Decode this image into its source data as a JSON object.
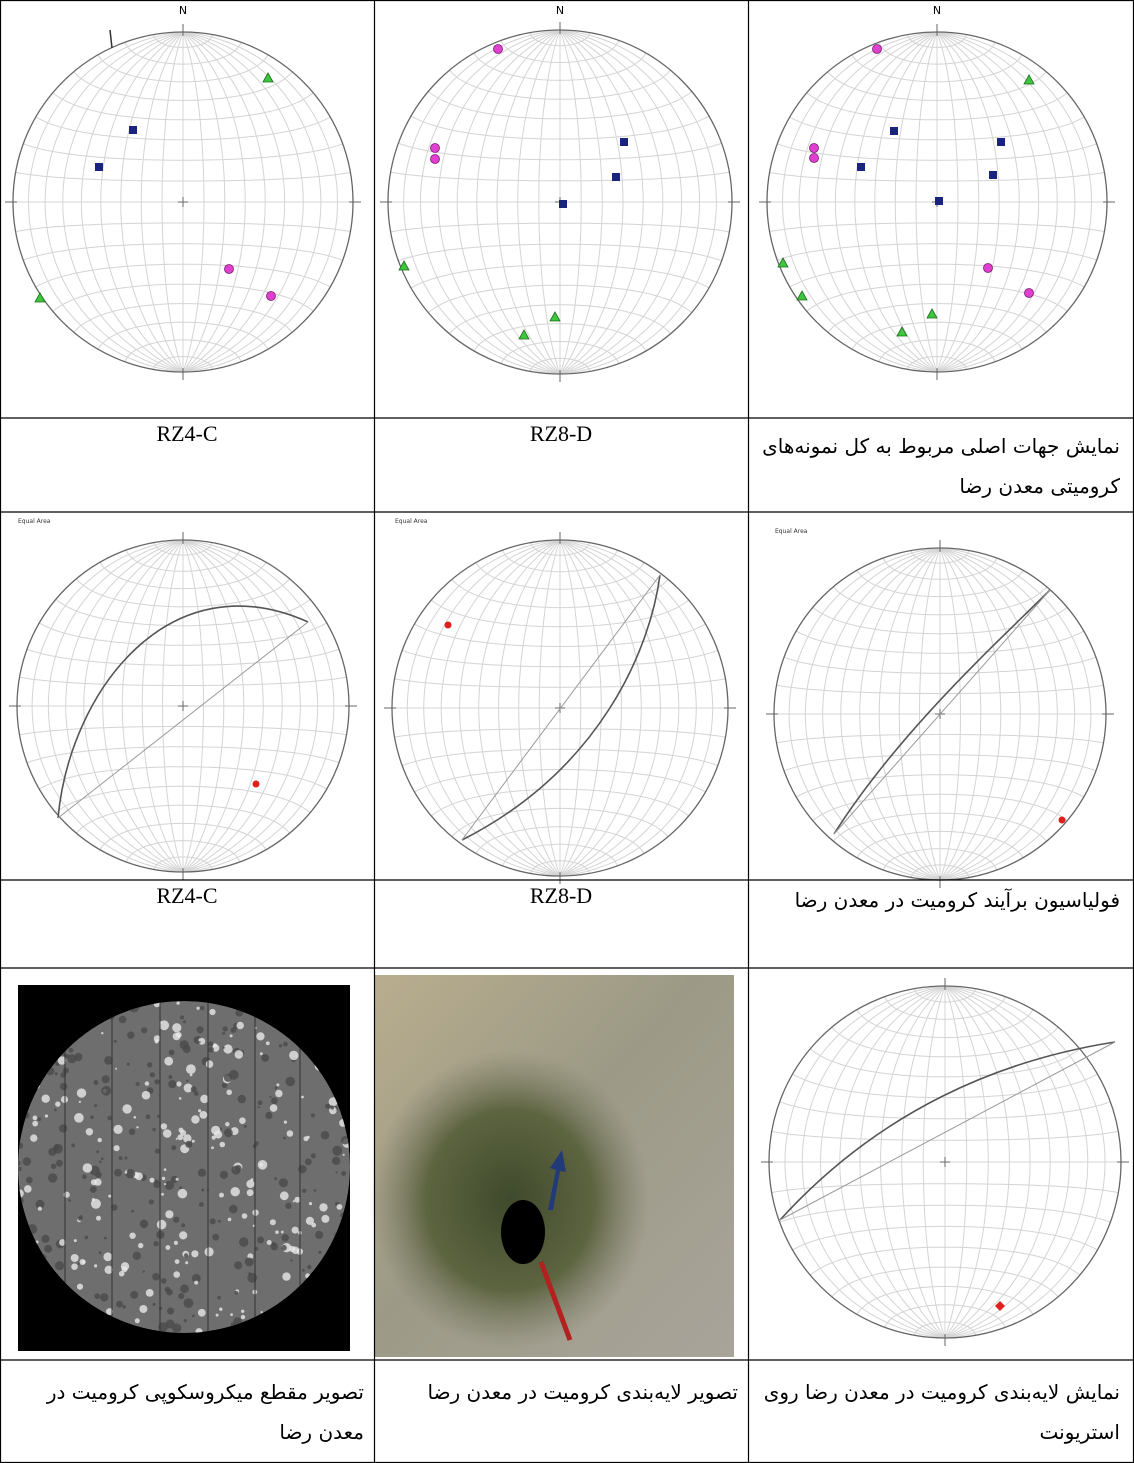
{
  "row1": {
    "north": [
      "N",
      "N",
      "N"
    ],
    "captions": [
      "RZ4-C",
      "RZ8-D",
      "نمایش جهات اصلی مربوط به کل نمونه‌های کرومیتی معدن رضا"
    ]
  },
  "row2": {
    "net_labels": [
      "Equal Area",
      "Equal Area",
      "Equal Area"
    ],
    "captions": [
      "RZ4-C",
      "RZ8-D",
      "فولیاسیون برآیند کرومیت در معدن رضا"
    ]
  },
  "row3": {
    "captions": [
      "تصویر مقطع میکروسکوپی کرومیت در معدن رضا",
      "تصویر لایه‌بندی کرومیت در معدن رضا",
      "نمایش لایه‌بندی کرومیت در معدن رضا روی استریونت"
    ]
  }
}
